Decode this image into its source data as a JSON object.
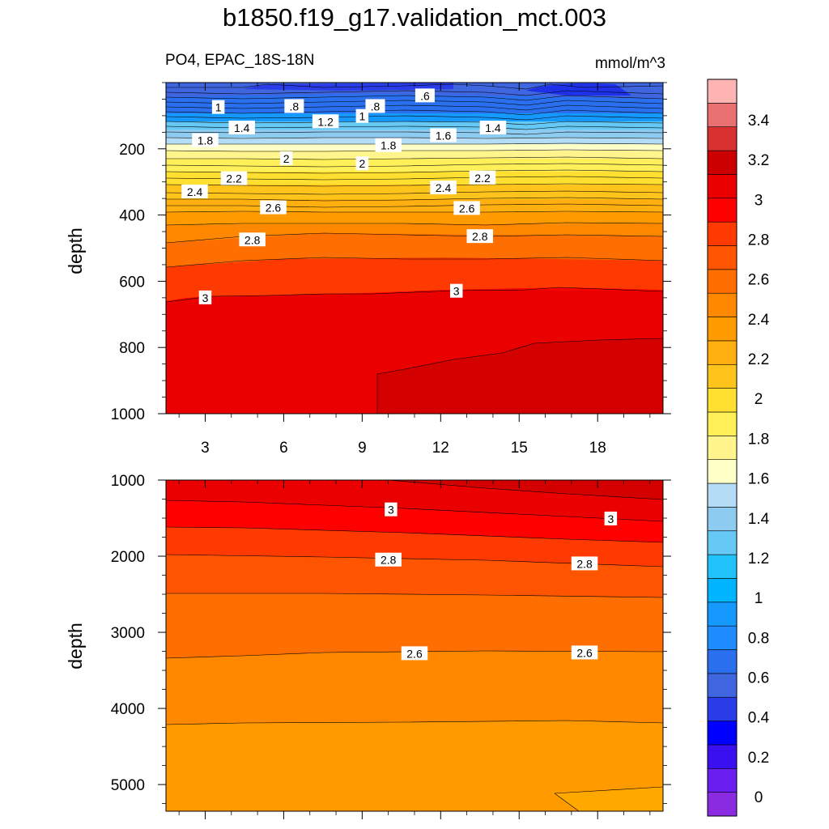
{
  "title": "b1850.f19_g17.validation_mct.003",
  "subtitle_left": "PO4, EPAC_18S-18N",
  "units": "mmol/m^3",
  "chart_data": [
    {
      "type": "heatmap",
      "panel": "upper",
      "ylabel": "depth",
      "y_reversed": true,
      "xlim": [
        1.5,
        20.5
      ],
      "ylim": [
        1000,
        0
      ],
      "x_ticks": [
        3,
        6,
        9,
        12,
        15,
        18
      ],
      "y_ticks": [
        200,
        400,
        600,
        800,
        1000
      ],
      "contour_labels": [
        {
          "text": "1",
          "x": 3.5,
          "y": 75
        },
        {
          "text": ".8",
          "x": 6.4,
          "y": 72
        },
        {
          "text": "1.2",
          "x": 7.6,
          "y": 118
        },
        {
          "text": "1",
          "x": 9.0,
          "y": 102
        },
        {
          "text": ".8",
          "x": 9.5,
          "y": 72
        },
        {
          "text": ".6",
          "x": 11.4,
          "y": 40
        },
        {
          "text": "1.4",
          "x": 4.4,
          "y": 137
        },
        {
          "text": "1.4",
          "x": 14.0,
          "y": 137
        },
        {
          "text": "1.6",
          "x": 12.1,
          "y": 160
        },
        {
          "text": "1.8",
          "x": 3.0,
          "y": 175
        },
        {
          "text": "1.8",
          "x": 10.0,
          "y": 190
        },
        {
          "text": "2",
          "x": 6.1,
          "y": 230
        },
        {
          "text": "2",
          "x": 9.0,
          "y": 245
        },
        {
          "text": "2.2",
          "x": 4.1,
          "y": 290
        },
        {
          "text": "2.2",
          "x": 13.6,
          "y": 288
        },
        {
          "text": "2.4",
          "x": 2.6,
          "y": 330
        },
        {
          "text": "2.4",
          "x": 12.1,
          "y": 318
        },
        {
          "text": "2.6",
          "x": 5.6,
          "y": 378
        },
        {
          "text": "2.6",
          "x": 13.0,
          "y": 380
        },
        {
          "text": "2.8",
          "x": 4.8,
          "y": 475
        },
        {
          "text": "2.8",
          "x": 13.5,
          "y": 465
        },
        {
          "text": "3",
          "x": 3.0,
          "y": 650
        },
        {
          "text": "3",
          "x": 12.6,
          "y": 630
        }
      ]
    },
    {
      "type": "heatmap",
      "panel": "lower",
      "ylabel": "depth",
      "y_reversed": true,
      "xlim": [
        1.5,
        20.5
      ],
      "ylim": [
        5350,
        1000
      ],
      "x_ticks": [
        3,
        6,
        9,
        12,
        15,
        18
      ],
      "y_ticks": [
        1000,
        2000,
        3000,
        4000,
        5000
      ],
      "contour_labels": [
        {
          "text": "3",
          "x": 10.1,
          "y": 1390
        },
        {
          "text": "3",
          "x": 18.5,
          "y": 1510
        },
        {
          "text": "2.8",
          "x": 10.0,
          "y": 2050
        },
        {
          "text": "2.8",
          "x": 17.5,
          "y": 2100
        },
        {
          "text": "2.6",
          "x": 11.0,
          "y": 3280
        },
        {
          "text": "2.6",
          "x": 17.5,
          "y": 3270
        }
      ]
    }
  ],
  "colorbar": {
    "labels": [
      "0",
      "0.2",
      "0.4",
      "0.6",
      "0.8",
      "1",
      "1.2",
      "1.4",
      "1.6",
      "1.8",
      "2",
      "2.2",
      "2.4",
      "2.6",
      "2.8",
      "3",
      "3.2",
      "3.4"
    ],
    "colors": [
      "#8a2be2",
      "#6a1ef0",
      "#3a10f0",
      "#0000ff",
      "#2a3ce8",
      "#3f65df",
      "#2a70ee",
      "#1e8bff",
      "#1599ff",
      "#00b4ff",
      "#20c4fa",
      "#66c8f5",
      "#8ecbf0",
      "#b4dcf5",
      "#ffffc8",
      "#fff58c",
      "#fff05a",
      "#ffe030",
      "#ffc41c",
      "#ffb010",
      "#ff9a00",
      "#ff8800",
      "#ff6e00",
      "#ff5500",
      "#ff3a00",
      "#ff0000",
      "#ea0000",
      "#cc0000",
      "#d93030",
      "#e87070",
      "#ffb4b4"
    ]
  }
}
